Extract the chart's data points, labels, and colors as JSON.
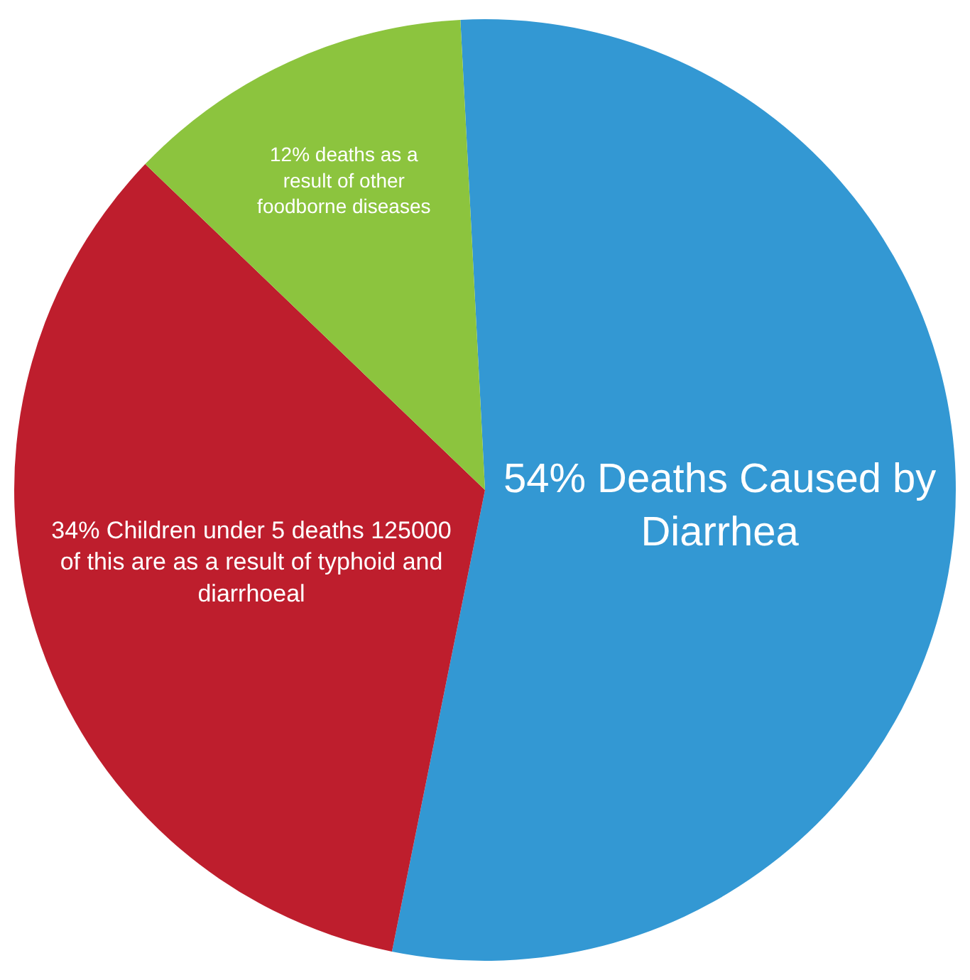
{
  "chart_data": {
    "type": "pie",
    "categories": [
      "54% Deaths Caused by Diarrhea",
      "34% Children under 5 deaths 125000 of this are as a result of typhoid and diarrhoeal",
      "12% deaths as a result of other foodborne diseases"
    ],
    "values": [
      54,
      34,
      12
    ],
    "colors": [
      "#3398d3",
      "#be1e2d",
      "#8cc43e"
    ]
  }
}
